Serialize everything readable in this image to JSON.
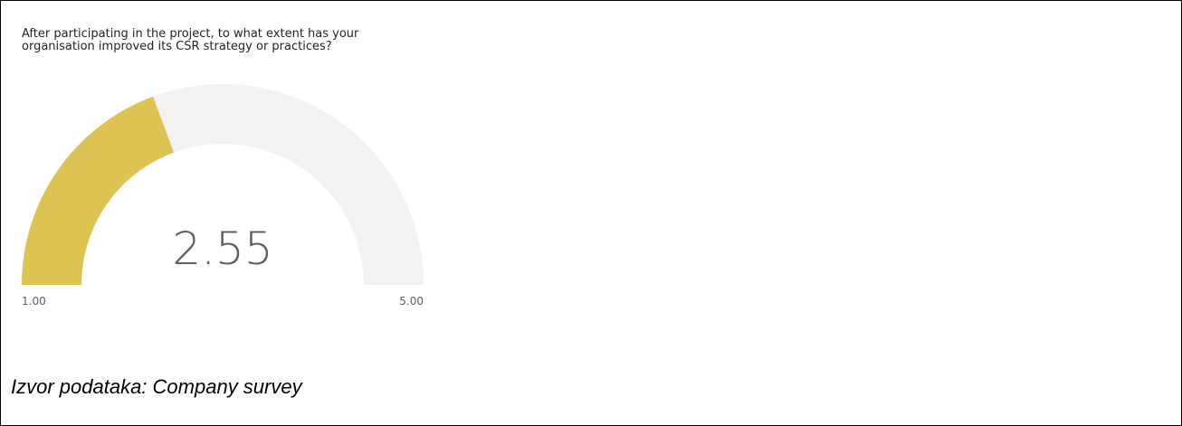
{
  "chart_data": {
    "type": "gauge",
    "title": "After participating in the project, to what extent has your organisation improved its CSR strategy or practices?",
    "value": 2.55,
    "value_label": "2.55",
    "min": 1.0,
    "max": 5.0,
    "min_label": "1.00",
    "max_label": "5.00",
    "fill_color": "#DDC352",
    "track_color": "#F3F2F1"
  },
  "source": {
    "text": "Izvor podataka: Company survey"
  }
}
